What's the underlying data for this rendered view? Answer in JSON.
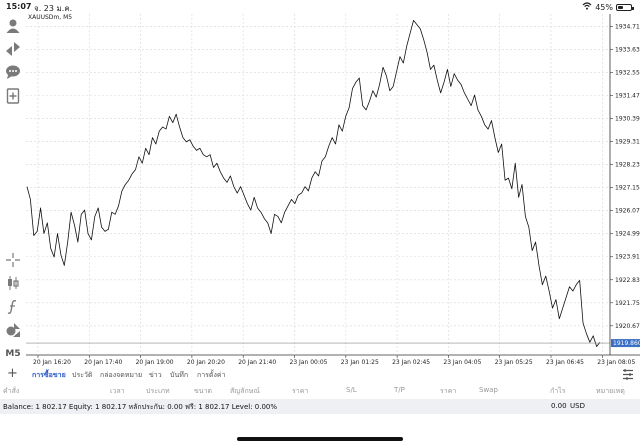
{
  "status": {
    "time": "15:07",
    "date": "จ. 23 ม.ค.",
    "battery": "45%",
    "battery_level": 0.45
  },
  "chart": {
    "symbol_label": "XAUUSDm, M5",
    "current_price": "1919.860"
  },
  "toolbar": {
    "icons": [
      "person-icon",
      "transfer-icon",
      "chat-icon",
      "add-document-icon",
      "crosshair-icon",
      "candlestick-icon",
      "function-icon",
      "objects-icon"
    ],
    "timeframe": "M5"
  },
  "tabs": {
    "items": [
      "การซื้อขาย",
      "ประวัติ",
      "กล่องจดหมาย",
      "ข่าว",
      "บันทึก",
      "การตั้งค่า"
    ],
    "active_index": 0
  },
  "columns": [
    "คำสั่ง",
    "เวลา",
    "ประเภท",
    "ขนาด",
    "สัญลักษณ์",
    "ราคา",
    "S/L",
    "T/P",
    "ราคา",
    "Swap",
    "กำไร",
    "หมายเหตุ"
  ],
  "balance": {
    "text": "Balance: 1 802.17  Equity: 1 802.17  หลักประกัน: 0.00  ฟรี: 1 802.17  Level: 0.00%",
    "profit": "0.00",
    "currency": "USD"
  },
  "chart_data": {
    "type": "line",
    "title": "XAUUSDm, M5",
    "y_ticks": [
      "1934.710",
      "1933.630",
      "1932.550",
      "1931.470",
      "1930.390",
      "1929.310",
      "1928.230",
      "1927.150",
      "1926.070",
      "1924.990",
      "1923.910",
      "1922.830",
      "1921.750",
      "1920.670",
      "1919.860"
    ],
    "x_ticks": [
      "20 Jan 16:20",
      "20 Jan 17:40",
      "20 Jan 19:00",
      "20 Jan 20:20",
      "20 Jan 21:40",
      "23 Jan 00:05",
      "23 Jan 01:25",
      "23 Jan 02:45",
      "23 Jan 04:05",
      "23 Jan 05:25",
      "23 Jan 06:45",
      "23 Jan 08:05"
    ],
    "ylim": [
      1919.3,
      1935.3
    ],
    "grid": true,
    "series": [
      {
        "values": [
          1927.2,
          1926.6,
          1924.9,
          1925.1,
          1926.2,
          1925.0,
          1925.5,
          1924.3,
          1923.9,
          1925.0,
          1924.0,
          1923.5,
          1924.6,
          1926.0,
          1925.4,
          1924.6,
          1925.9,
          1926.1,
          1925.0,
          1924.7,
          1925.8,
          1926.2,
          1925.3,
          1925.1,
          1925.2,
          1926.0,
          1925.9,
          1926.3,
          1927.0,
          1927.3,
          1927.5,
          1927.8,
          1928.0,
          1928.6,
          1928.3,
          1929.0,
          1928.7,
          1929.5,
          1929.2,
          1929.8,
          1930.0,
          1929.9,
          1930.5,
          1930.2,
          1930.6,
          1930.0,
          1929.5,
          1929.3,
          1929.4,
          1929.1,
          1928.9,
          1929.0,
          1928.7,
          1928.6,
          1928.7,
          1928.1,
          1928.3,
          1927.9,
          1927.6,
          1927.4,
          1927.7,
          1927.2,
          1926.9,
          1927.2,
          1926.8,
          1926.4,
          1926.1,
          1926.7,
          1926.2,
          1926.0,
          1925.7,
          1925.5,
          1925.0,
          1925.9,
          1925.8,
          1925.5,
          1926.0,
          1926.3,
          1926.6,
          1926.4,
          1926.8,
          1926.9,
          1927.2,
          1927.0,
          1927.6,
          1927.9,
          1927.7,
          1928.4,
          1928.6,
          1929.1,
          1929.5,
          1929.2,
          1930.1,
          1929.8,
          1930.5,
          1930.9,
          1931.8,
          1932.1,
          1932.3,
          1931.0,
          1930.8,
          1931.2,
          1931.7,
          1931.4,
          1932.0,
          1932.8,
          1932.4,
          1931.7,
          1931.9,
          1932.6,
          1933.3,
          1933.0,
          1933.8,
          1934.4,
          1935.0,
          1934.8,
          1934.6,
          1934.1,
          1933.5,
          1932.7,
          1932.9,
          1932.2,
          1931.6,
          1932.1,
          1932.7,
          1931.9,
          1932.5,
          1932.2,
          1932.0,
          1931.6,
          1931.3,
          1931.0,
          1931.5,
          1930.8,
          1930.5,
          1930.1,
          1929.9,
          1930.3,
          1929.5,
          1928.8,
          1929.2,
          1927.5,
          1927.6,
          1927.1,
          1928.3,
          1926.7,
          1927.3,
          1925.8,
          1925.3,
          1924.2,
          1924.6,
          1923.5,
          1922.6,
          1923.0,
          1922.3,
          1921.5,
          1921.9,
          1921.0,
          1921.5,
          1922.0,
          1922.5,
          1922.3,
          1922.6,
          1922.8,
          1920.8,
          1920.3,
          1919.9,
          1920.2,
          1919.7,
          1919.9
        ]
      }
    ]
  }
}
